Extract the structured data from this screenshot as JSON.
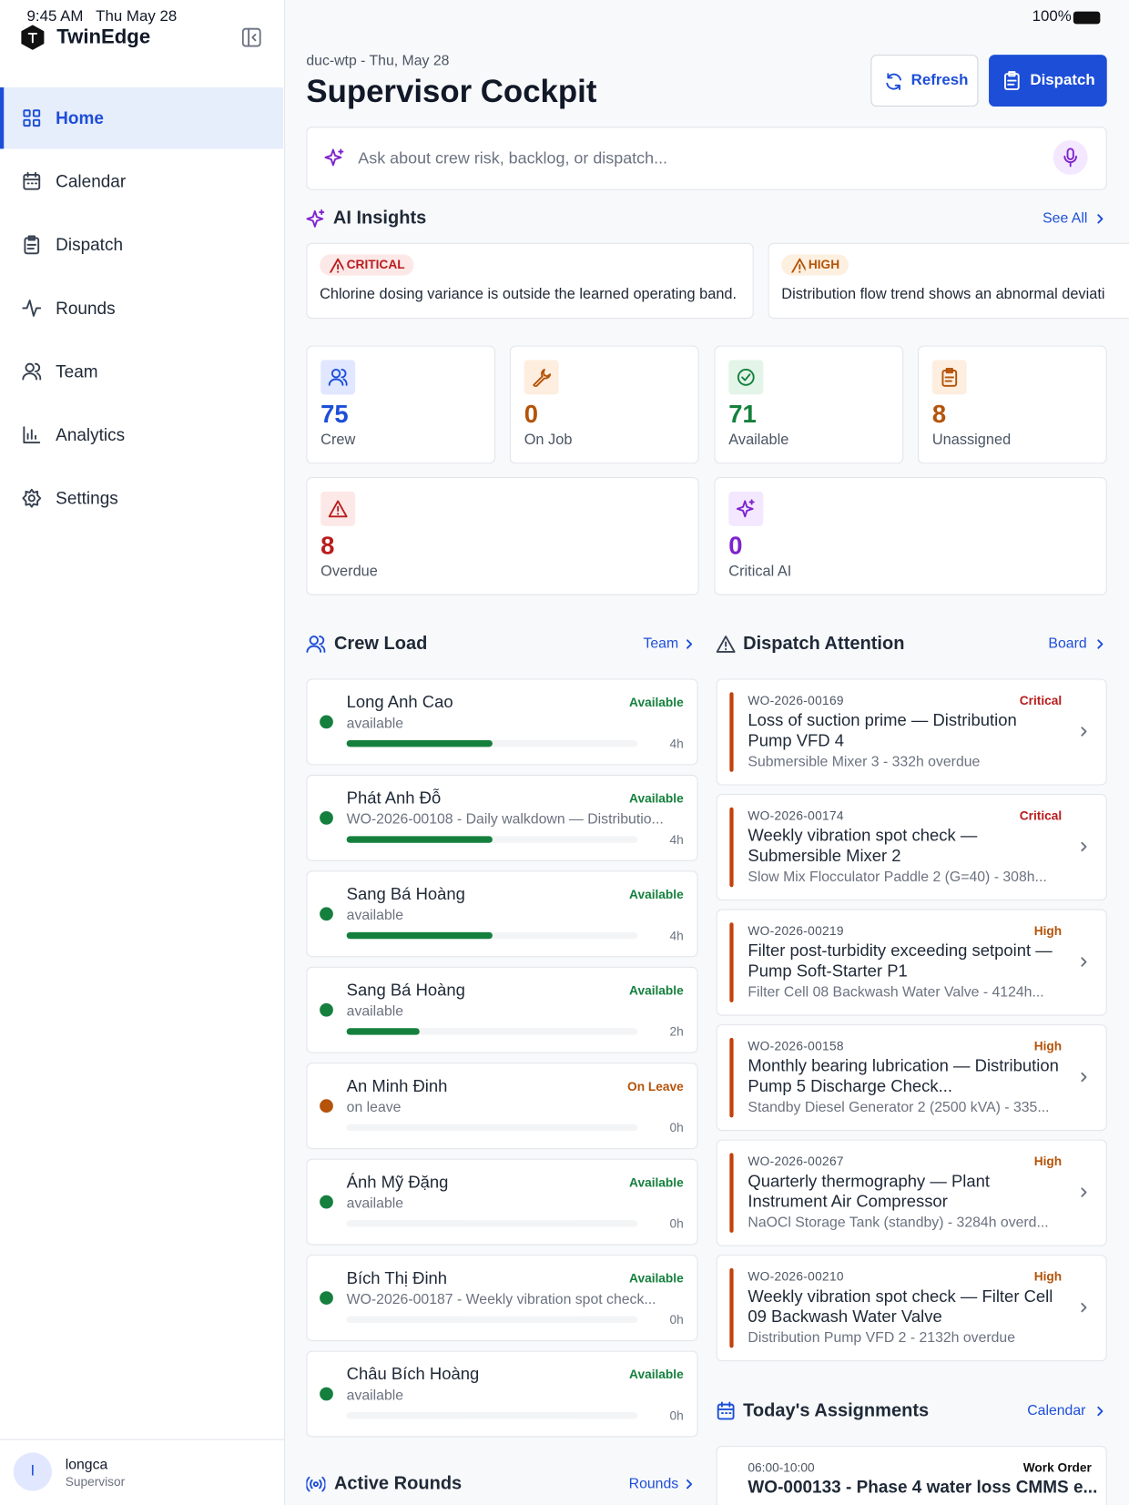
{
  "status_bar": {
    "time": "9:45 AM",
    "date": "Thu May 28",
    "battery": "100%"
  },
  "sidebar": {
    "brand": "TwinEdge",
    "nav": [
      "Home",
      "Calendar",
      "Dispatch",
      "Rounds",
      "Team",
      "Analytics",
      "Settings"
    ],
    "user": {
      "initial": "I",
      "name": "longca",
      "role": "Supervisor"
    }
  },
  "header": {
    "subtitle": "duc-wtp - Thu, May 28",
    "title": "Supervisor Cockpit",
    "buttons": [
      "Refresh",
      "Dispatch"
    ]
  },
  "search": {
    "placeholder": "Ask about crew risk, backlog, or dispatch..."
  },
  "ai_insights": {
    "title": "AI Insights",
    "link": "See All",
    "items": [
      {
        "severity": "CRITICAL",
        "text": "Chlorine dosing variance is outside the learned operating band."
      },
      {
        "severity": "HIGH",
        "text": "Distribution flow trend shows an abnormal deviati"
      }
    ]
  },
  "stats": [
    {
      "value": 75,
      "label": "Crew"
    },
    {
      "value": 0,
      "label": "On Job"
    },
    {
      "value": 71,
      "label": "Available"
    },
    {
      "value": 8,
      "label": "Unassigned"
    },
    {
      "value": 8,
      "label": "Overdue"
    },
    {
      "value": 0,
      "label": "Critical AI"
    }
  ],
  "crew_load": {
    "title": "Crew Load",
    "link": "Team",
    "members": [
      {
        "name": "Long Anh Cao",
        "detail": "available",
        "status": "Available",
        "hours": "4h"
      },
      {
        "name": "Phát Anh Đỗ",
        "detail": "WO-2026-00108 - Daily walkdown — Distributio...",
        "status": "Available",
        "hours": "4h"
      },
      {
        "name": "Sang Bá Hoàng",
        "detail": "available",
        "status": "Available",
        "hours": "4h"
      },
      {
        "name": "Sang Bá Hoàng",
        "detail": "available",
        "status": "Available",
        "hours": "2h"
      },
      {
        "name": "An Minh Đinh",
        "detail": "on leave",
        "status": "On Leave",
        "hours": "0h"
      },
      {
        "name": "Ánh Mỹ Đặng",
        "detail": "available",
        "status": "Available",
        "hours": "0h"
      },
      {
        "name": "Bích Thị Đinh",
        "detail": "WO-2026-00187 - Weekly vibration spot check...",
        "status": "Available",
        "hours": "0h"
      },
      {
        "name": "Châu Bích Hoàng",
        "detail": "available",
        "status": "Available",
        "hours": "0h"
      }
    ]
  },
  "dispatch_attention": {
    "title": "Dispatch Attention",
    "link": "Board",
    "items": [
      {
        "id": "WO-2026-00169",
        "priority": "Critical",
        "title": "Loss of suction prime — Distribution Pump VFD 4",
        "detail": "Submersible Mixer 3 - 332h overdue"
      },
      {
        "id": "WO-2026-00174",
        "priority": "Critical",
        "title": "Weekly vibration spot check — Submersible Mixer 2",
        "detail": "Slow Mix Flocculator Paddle 2 (G=40) - 308h..."
      },
      {
        "id": "WO-2026-00219",
        "priority": "High",
        "title": "Filter post-turbidity exceeding setpoint — Pump Soft-Starter P1",
        "detail": "Filter Cell 08 Backwash Water Valve - 4124h..."
      },
      {
        "id": "WO-2026-00158",
        "priority": "High",
        "title": "Monthly bearing lubrication — Distribution Pump 5 Discharge Check...",
        "detail": "Standby Diesel Generator 2 (2500 kVA) - 335..."
      },
      {
        "id": "WO-2026-00267",
        "priority": "High",
        "title": "Quarterly thermography — Plant Instrument Air Compressor",
        "detail": "NaOCl Storage Tank (standby) - 3284h overd..."
      },
      {
        "id": "WO-2026-00210",
        "priority": "High",
        "title": "Weekly vibration spot check — Filter Cell 09 Backwash Water Valve",
        "detail": "Distribution Pump VFD 2 - 2132h overdue"
      }
    ]
  },
  "todays_assignments": {
    "title": "Today's Assignments",
    "link": "Calendar",
    "items": [
      {
        "time": "06:00-10:00",
        "type": "Work Order",
        "title": "WO-000133 - Phase 4 water loss CMMS e..."
      }
    ]
  },
  "active_rounds": {
    "title": "Active Rounds",
    "link": "Rounds"
  }
}
